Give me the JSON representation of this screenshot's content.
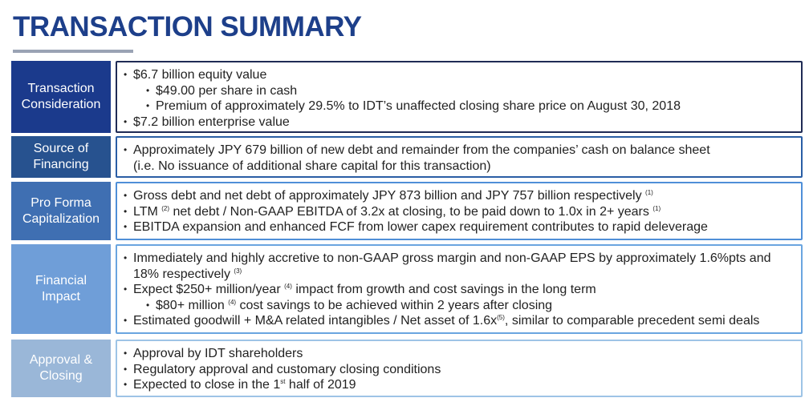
{
  "title": "TRANSACTION SUMMARY",
  "rows": [
    {
      "label": "Transaction Consideration",
      "bullets": [
        {
          "level": 1,
          "text": "$6.7 billion equity value"
        },
        {
          "level": 2,
          "text": "$49.00 per share in cash"
        },
        {
          "level": 2,
          "text": "Premium of approximately 29.5% to IDT’s unaffected closing share price on August 30, 2018"
        },
        {
          "level": 1,
          "text": "$7.2 billion enterprise value"
        }
      ]
    },
    {
      "label": "Source of Financing",
      "bullets": [
        {
          "level": 1,
          "text": "Approximately JPY 679 billion of new debt and remainder from the companies’ cash on balance sheet"
        },
        {
          "level": 0,
          "text": "(i.e. No issuance of additional share capital for this transaction)"
        }
      ]
    },
    {
      "label": "Pro Forma Capitalization",
      "bullets": [
        {
          "level": 1,
          "text": "Gross debt and net debt of approximately JPY 873 billion and JPY 757 billion respectively",
          "note_a": "(1)"
        },
        {
          "level": 1,
          "pre": "LTM",
          "note_pre": "(2)",
          "text": " net debt / Non-GAAP EBITDA of 3.2x at closing, to be paid down to 1.0x in 2+ years",
          "note_a": "(1)"
        },
        {
          "level": 1,
          "text": "EBITDA expansion and enhanced FCF from lower capex requirement contributes to rapid deleverage"
        }
      ]
    },
    {
      "label": "Financial Impact",
      "bullets": [
        {
          "level": 1,
          "text": "Immediately and highly accretive to non-GAAP gross margin and non-GAAP EPS by approximately 1.6%pts and"
        },
        {
          "level": 0,
          "text": "18% respectively",
          "note_a": "(3)"
        },
        {
          "level": 1,
          "pre": "Expect $250+ million/year",
          "note_pre": "(4)",
          "text": " impact from growth and cost savings in the long term"
        },
        {
          "level": 2,
          "pre": "$80+ million",
          "note_pre": "(4)",
          "text": " cost savings to be achieved within 2 years after closing"
        },
        {
          "level": 1,
          "pre": "Estimated goodwill + M&A related intangibles / Net asset of 1.6x",
          "note_pre": "(5)",
          "text": ", similar to comparable precedent semi deals"
        }
      ]
    },
    {
      "label": "Approval & Closing",
      "bullets": [
        {
          "level": 1,
          "text": "Approval by IDT shareholders"
        },
        {
          "level": 1,
          "text": "Regulatory approval and customary closing conditions"
        },
        {
          "level": 1,
          "pre": "Expected to close in the 1",
          "note_pre": "st",
          "text": " half of 2019"
        }
      ]
    }
  ]
}
